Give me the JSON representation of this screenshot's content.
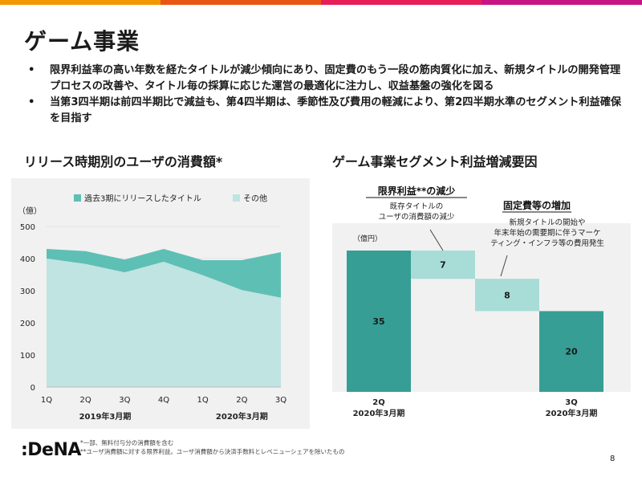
{
  "topbar_colors": [
    "#f39800",
    "#e95513",
    "#e61e5a",
    "#c71585"
  ],
  "page": {
    "title": "ゲーム事業",
    "bullets": [
      "限界利益率の高い年数を経たタイトルが減少傾向にあり、固定費のもう一段の筋肉質化に加え、新規タイトルの開発管理プロセスの改善や、タイトル毎の採算に応じた運営の最適化に注力し、収益基盤の強化を図る",
      "当第3四半期は前四半期比で減益も、第4四半期は、季節性及び費用の軽減により、第2四半期水準のセグメント利益確保を目指す"
    ],
    "bullet_marker": "•",
    "footnotes": [
      "*一部、無料付与分の消費額を含む",
      "**ユーザ消費額に対する限界利益。ユーザ消費額から決済手数料とレベニューシェアを除いたもの"
    ],
    "logo": ":DeNA",
    "page_number": "8"
  },
  "colors": {
    "panel_bg": "#f1f1f1",
    "teal_dark": "#369e94",
    "teal_mid": "#5ebfb5",
    "teal_light": "#bfe4e1",
    "teal_pale": "#a8dcd7"
  },
  "chart_data": [
    {
      "type": "area",
      "title": "リリース時期別のユーザの消費額*",
      "ylabel": "（億）",
      "ylim": [
        0,
        500
      ],
      "yticks": [
        0,
        100,
        200,
        300,
        400,
        500
      ],
      "categories": [
        "1Q",
        "2Q",
        "3Q",
        "4Q",
        "1Q",
        "2Q",
        "3Q"
      ],
      "groups": [
        {
          "label": "2019年3月期",
          "span": [
            0,
            3
          ]
        },
        {
          "label": "2020年3月期",
          "span": [
            4,
            6
          ]
        }
      ],
      "stacked": true,
      "legend_position": "top",
      "series": [
        {
          "name": "その他",
          "values": [
            400,
            383,
            357,
            390,
            348,
            302,
            278
          ]
        },
        {
          "name": "過去3期にリリースしたタイトル",
          "values": [
            30,
            40,
            40,
            40,
            47,
            93,
            142
          ]
        }
      ]
    },
    {
      "type": "bar",
      "subtype": "waterfall",
      "title": "ゲーム事業セグメント利益増減要因",
      "ylabel": "（億円）",
      "bars": [
        {
          "label": "2Q",
          "sublabel": "2020年3月期",
          "value": 35,
          "value_label": "35",
          "kind": "total",
          "base": 0
        },
        {
          "label": "",
          "value": 7,
          "value_label": "7",
          "kind": "decrease",
          "base": 35
        },
        {
          "label": "",
          "value": 8,
          "value_label": "8",
          "kind": "decrease",
          "base": 28
        },
        {
          "label": "3Q",
          "sublabel": "2020年3月期",
          "value": 20,
          "value_label": "20",
          "kind": "total",
          "base": 0
        }
      ],
      "annotations": [
        {
          "heading": "限界利益**の減少",
          "lines": [
            "既存タイトルの",
            "ユーザの消費額の減少"
          ]
        },
        {
          "heading": "固定費等の増加",
          "lines": [
            "新規タイトルの開始や",
            "年末年始の需要期に伴うマーケ",
            "ティング・インフラ等の費用発生"
          ]
        }
      ]
    }
  ]
}
